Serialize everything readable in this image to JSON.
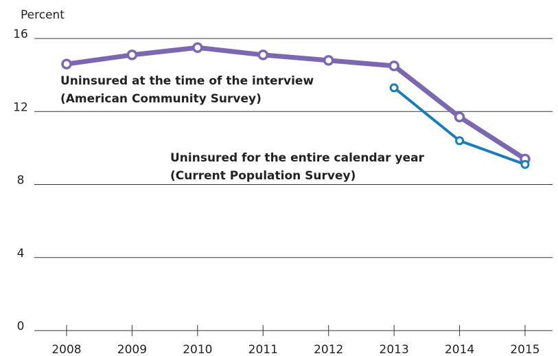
{
  "chart_data": {
    "type": "line",
    "y_label": "Percent",
    "categories": [
      "2008",
      "2009",
      "2010",
      "2011",
      "2012",
      "2013",
      "2014",
      "2015"
    ],
    "series": [
      {
        "name": "Uninsured at the time of the interview",
        "source": "(American Community Survey)",
        "color": "#7b68b0",
        "values": [
          14.6,
          15.1,
          15.5,
          15.1,
          14.8,
          14.5,
          11.7,
          9.4
        ]
      },
      {
        "name": "Uninsured for the entire calendar year",
        "source": "(Current Population Survey)",
        "color": "#1a7cb8",
        "values": [
          null,
          null,
          null,
          null,
          null,
          13.3,
          10.4,
          9.1
        ]
      }
    ],
    "ylim": [
      0,
      16
    ],
    "yticks": [
      0,
      4,
      8,
      12,
      16
    ],
    "grid": true
  }
}
